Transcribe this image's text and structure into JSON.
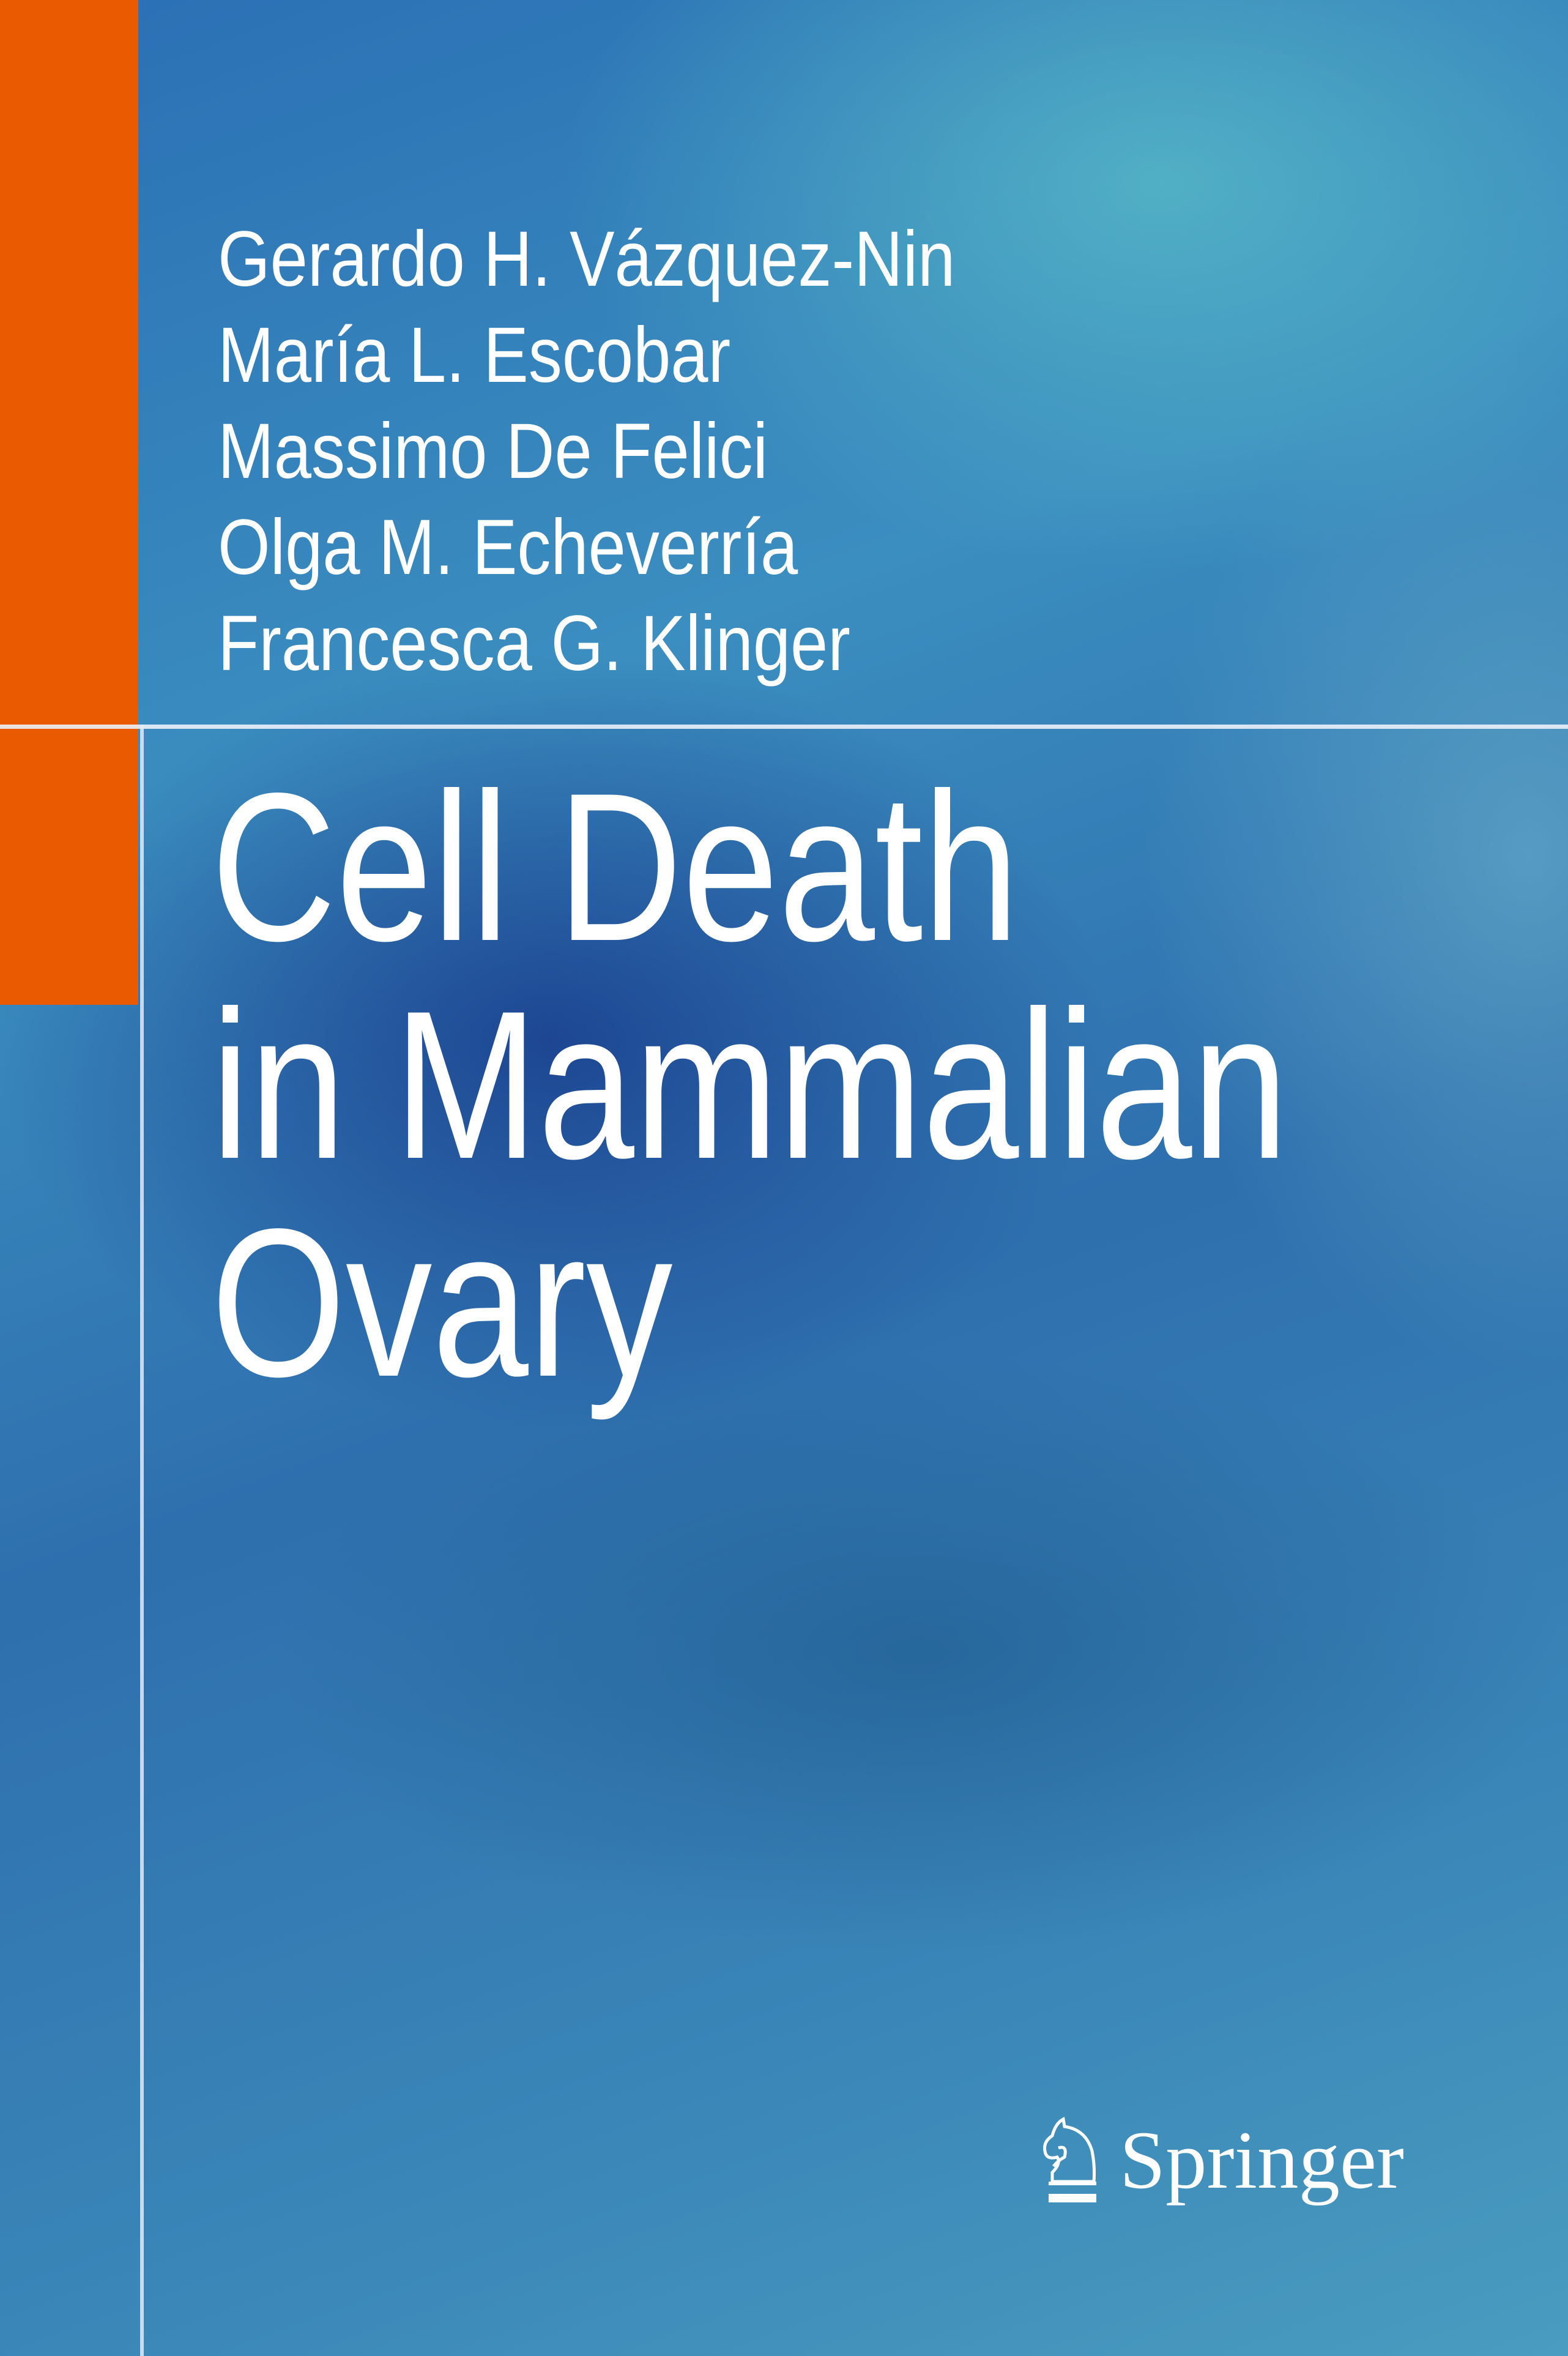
{
  "cover": {
    "authors": [
      "Gerardo H. Vázquez-Nin",
      "María L. Escobar",
      "Massimo De Felici",
      "Olga M. Echeverría",
      "Francesca G. Klinger"
    ],
    "title_lines": [
      "Cell Death",
      "in Mammalian",
      "Ovary"
    ],
    "publisher": "Springer",
    "publisher_logo_icon": "springer-knight-horse-icon",
    "colors": {
      "accent_bar": "#ea5a00",
      "background": "#2e6fae",
      "text": "#ffffff"
    }
  }
}
